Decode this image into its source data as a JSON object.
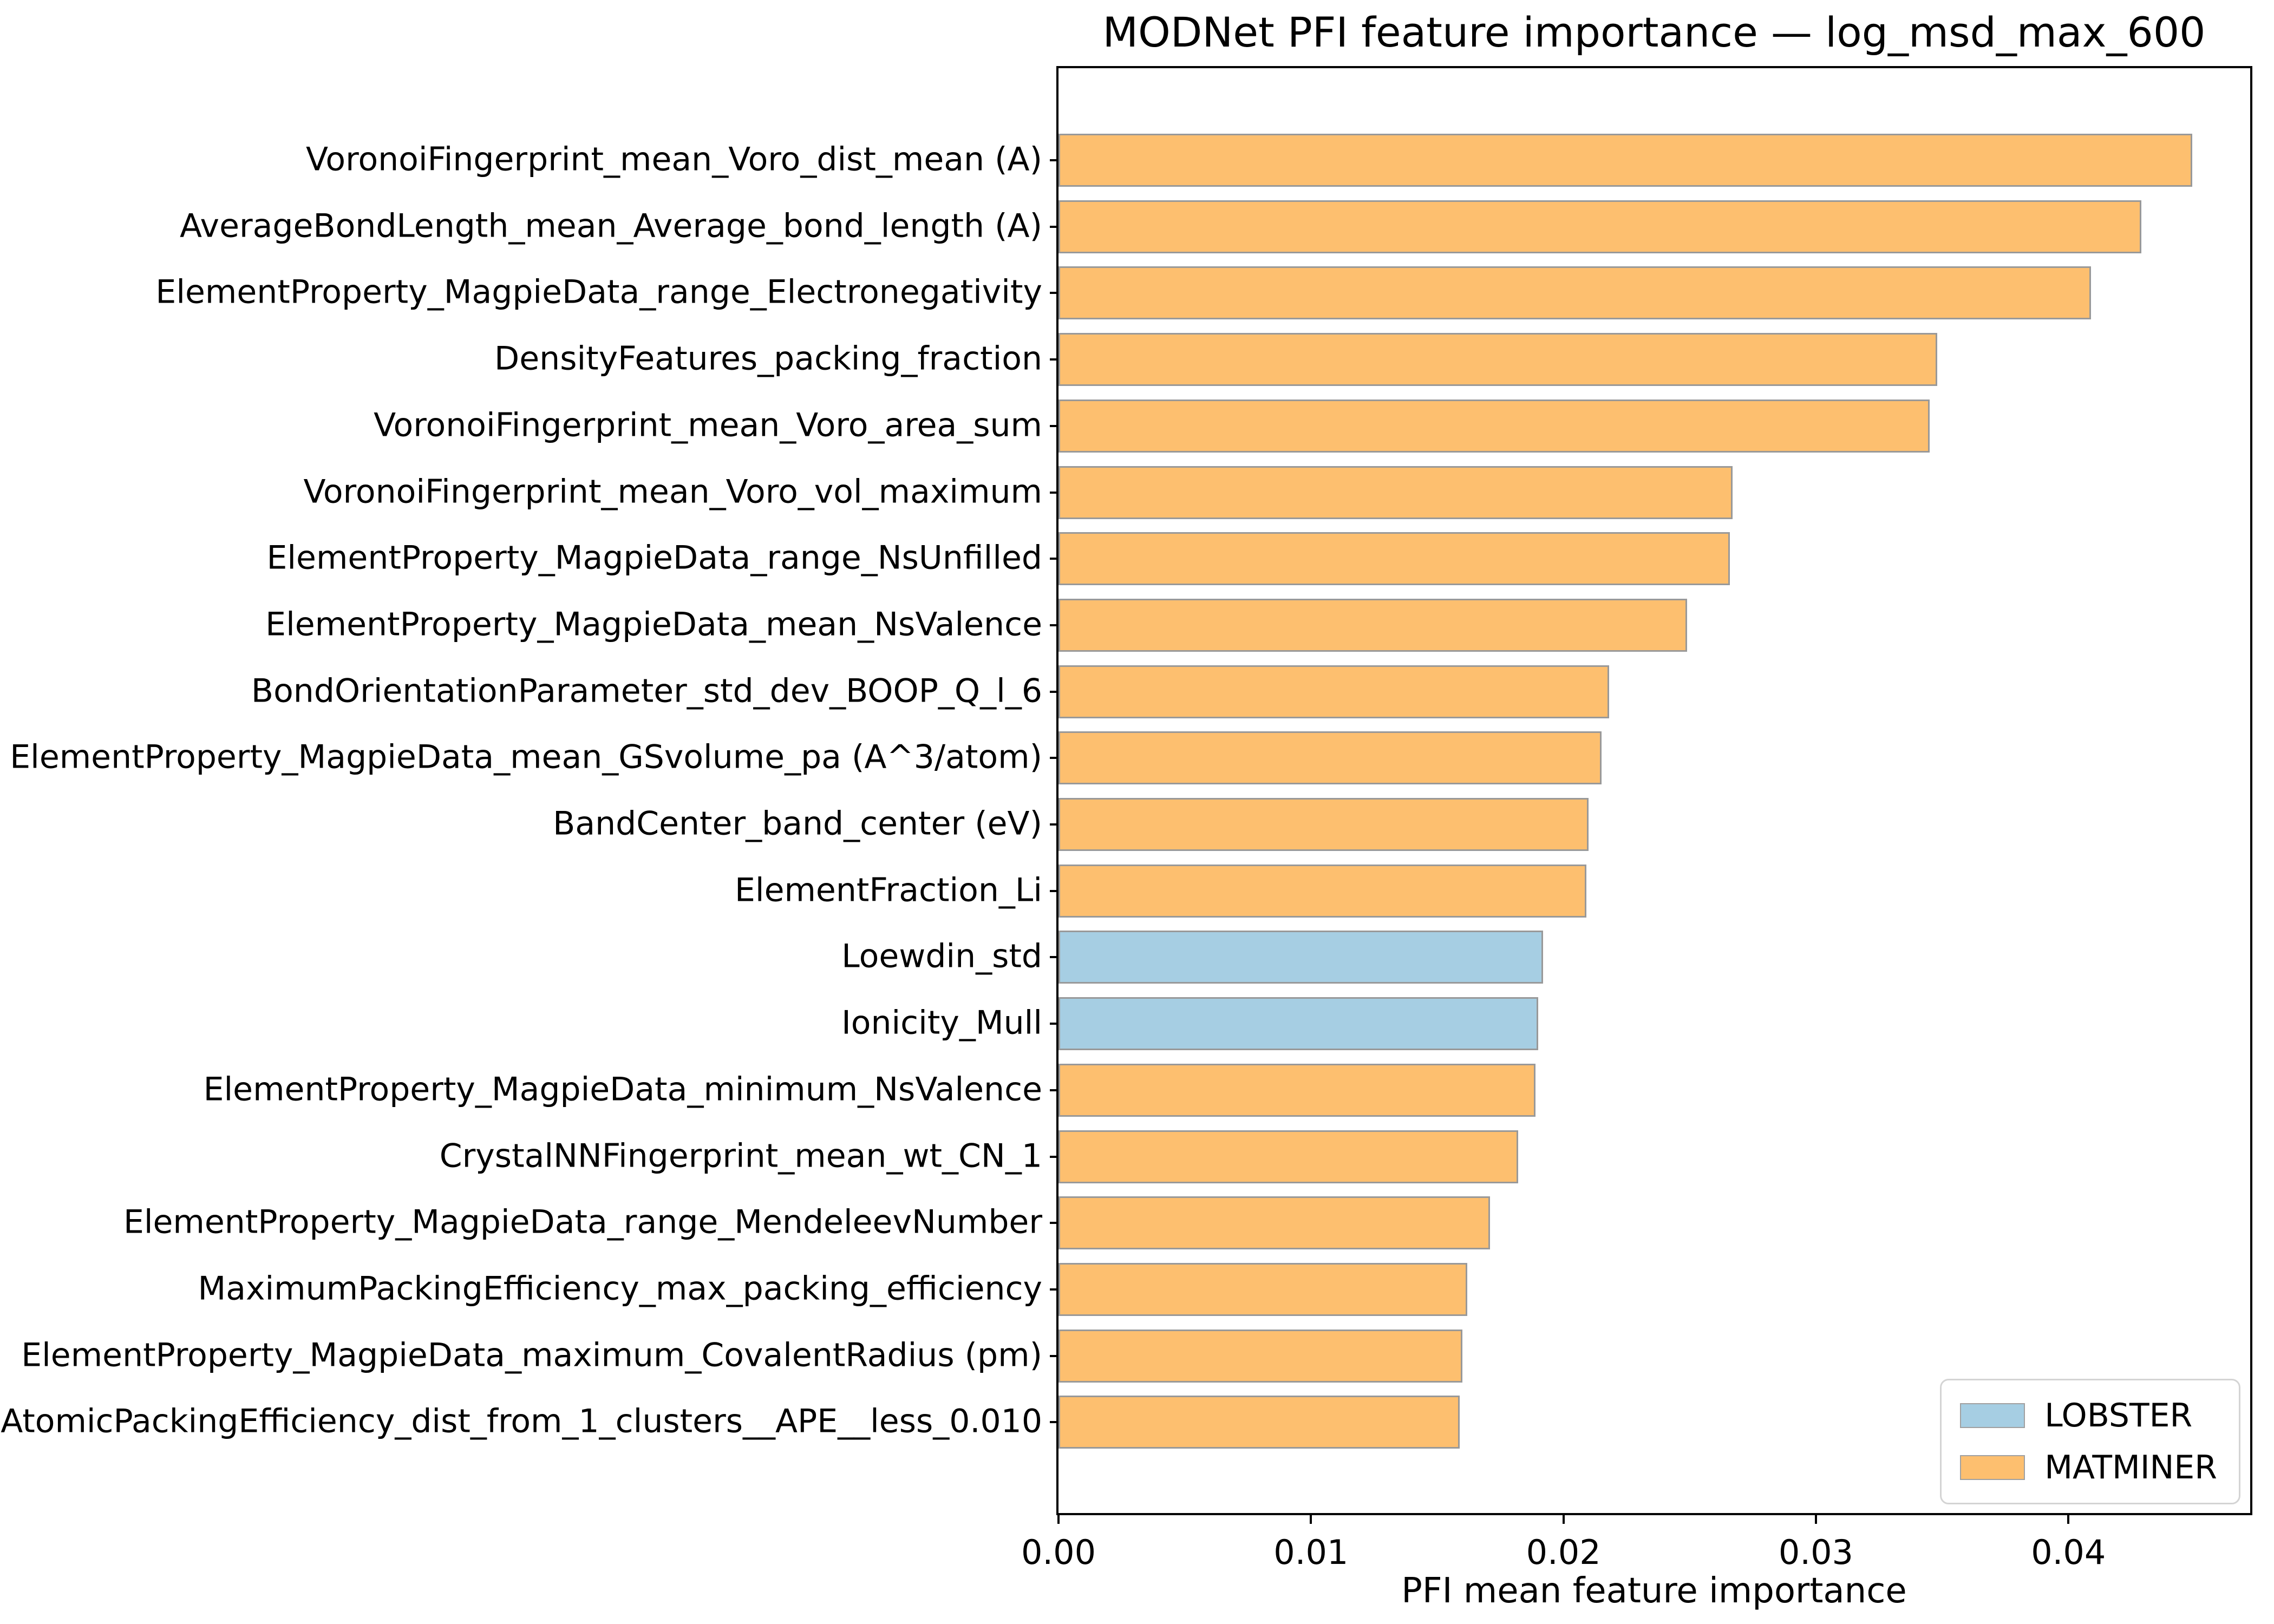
{
  "chart_data": {
    "type": "bar",
    "orientation": "horizontal",
    "title": "MODNet PFI feature importance — log_msd_max_600",
    "xlabel": "PFI mean feature importance",
    "xlim": [
      0,
      0.0472
    ],
    "grid": false,
    "x_ticks": [
      {
        "value": 0.0,
        "label": "0.00"
      },
      {
        "value": 0.01,
        "label": "0.01"
      },
      {
        "value": 0.02,
        "label": "0.02"
      },
      {
        "value": 0.03,
        "label": "0.03"
      },
      {
        "value": 0.04,
        "label": "0.04"
      }
    ],
    "legend": {
      "position": "lower right",
      "entries": [
        {
          "label": "LOBSTER",
          "color": "#a6cee3"
        },
        {
          "label": "MATMINER",
          "color": "#fdbf6f"
        }
      ]
    },
    "bar_edge_color": "#999999",
    "bars": [
      {
        "label": "VoronoiFingerprint_mean_Voro_dist_mean (A)",
        "value": 0.0449,
        "group": "MATMINER"
      },
      {
        "label": "AverageBondLength_mean_Average_bond_length (A)",
        "value": 0.0429,
        "group": "MATMINER"
      },
      {
        "label": "ElementProperty_MagpieData_range_Electronegativity",
        "value": 0.0409,
        "group": "MATMINER"
      },
      {
        "label": "DensityFeatures_packing_fraction",
        "value": 0.0348,
        "group": "MATMINER"
      },
      {
        "label": "VoronoiFingerprint_mean_Voro_area_sum",
        "value": 0.0345,
        "group": "MATMINER"
      },
      {
        "label": "VoronoiFingerprint_mean_Voro_vol_maximum",
        "value": 0.0267,
        "group": "MATMINER"
      },
      {
        "label": "ElementProperty_MagpieData_range_NsUnfilled",
        "value": 0.0266,
        "group": "MATMINER"
      },
      {
        "label": "ElementProperty_MagpieData_mean_NsValence",
        "value": 0.0249,
        "group": "MATMINER"
      },
      {
        "label": "BondOrientationParameter_std_dev_BOOP_Q_l_6",
        "value": 0.0218,
        "group": "MATMINER"
      },
      {
        "label": "ElementProperty_MagpieData_mean_GSvolume_pa (A^3/atom)",
        "value": 0.0215,
        "group": "MATMINER"
      },
      {
        "label": "BandCenter_band_center (eV)",
        "value": 0.021,
        "group": "MATMINER"
      },
      {
        "label": "ElementFraction_Li",
        "value": 0.0209,
        "group": "MATMINER"
      },
      {
        "label": "Loewdin_std",
        "value": 0.0192,
        "group": "LOBSTER"
      },
      {
        "label": "Ionicity_Mull",
        "value": 0.019,
        "group": "LOBSTER"
      },
      {
        "label": "ElementProperty_MagpieData_minimum_NsValence",
        "value": 0.0189,
        "group": "MATMINER"
      },
      {
        "label": "CrystalNNFingerprint_mean_wt_CN_1",
        "value": 0.0182,
        "group": "MATMINER"
      },
      {
        "label": "ElementProperty_MagpieData_range_MendeleevNumber",
        "value": 0.0171,
        "group": "MATMINER"
      },
      {
        "label": "MaximumPackingEfficiency_max_packing_efficiency",
        "value": 0.0162,
        "group": "MATMINER"
      },
      {
        "label": "ElementProperty_MagpieData_maximum_CovalentRadius (pm)",
        "value": 0.016,
        "group": "MATMINER"
      },
      {
        "label": "AtomicPackingEfficiency_dist_from_1_clusters__APE__less_0.010",
        "value": 0.0159,
        "group": "MATMINER"
      }
    ]
  }
}
